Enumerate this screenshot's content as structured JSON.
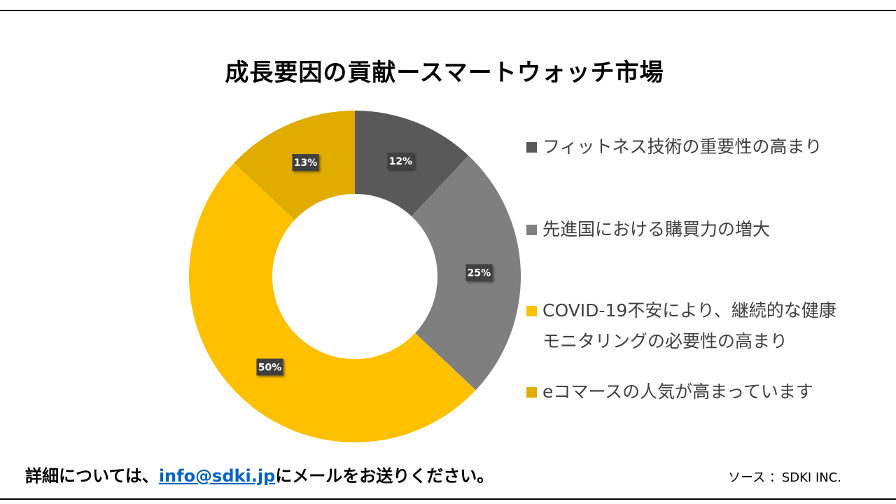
{
  "chart_data": {
    "type": "pie",
    "variant": "donut",
    "title": "成長要因の貢献ースマートウォッチ市場",
    "legend_position": "right",
    "data_label_format": "percent",
    "slices": [
      {
        "label": "フィットネス技術の重要性の高まり",
        "value": 12,
        "display": "12%",
        "color": "#595959"
      },
      {
        "label": "先進国における購買力の増大",
        "value": 25,
        "display": "25%",
        "color": "#7f7f7f"
      },
      {
        "label": "COVID-19不安により、継続的な健康モニタリングの必要性の高まり",
        "value": 50,
        "display": "50%",
        "color": "#ffc000"
      },
      {
        "label": "eコマースの人気が高まっています",
        "value": 13,
        "display": "13%",
        "color": "#e0ac00"
      }
    ]
  },
  "footer": {
    "contact_prefix": "詳細については、",
    "contact_email": "info@sdki.jp",
    "contact_suffix": "にメールをお送りください。",
    "source": "ソース ：SDKI INC."
  }
}
